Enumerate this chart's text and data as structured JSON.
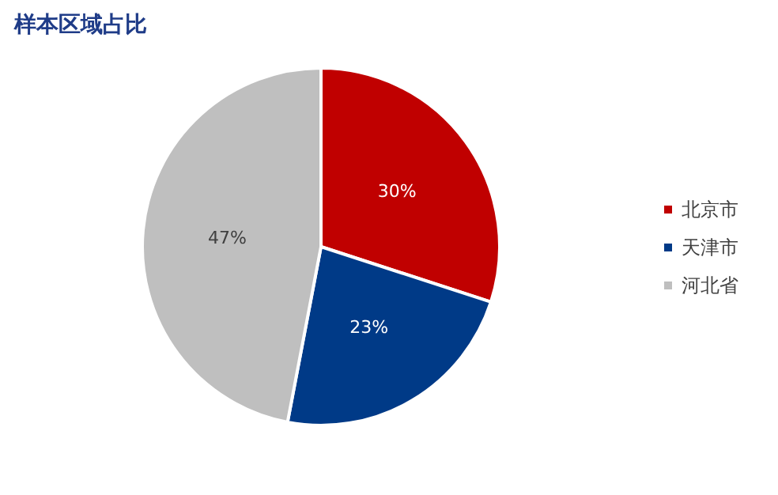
{
  "chart_data": {
    "type": "pie",
    "title": "样本区域占比",
    "categories": [
      "北京市",
      "天津市",
      "河北省"
    ],
    "values": [
      30,
      23,
      47
    ],
    "value_labels": [
      "30%",
      "23%",
      "47%"
    ],
    "colors": [
      "#c00000",
      "#003a87",
      "#bfbfbf"
    ],
    "legend": "right"
  }
}
